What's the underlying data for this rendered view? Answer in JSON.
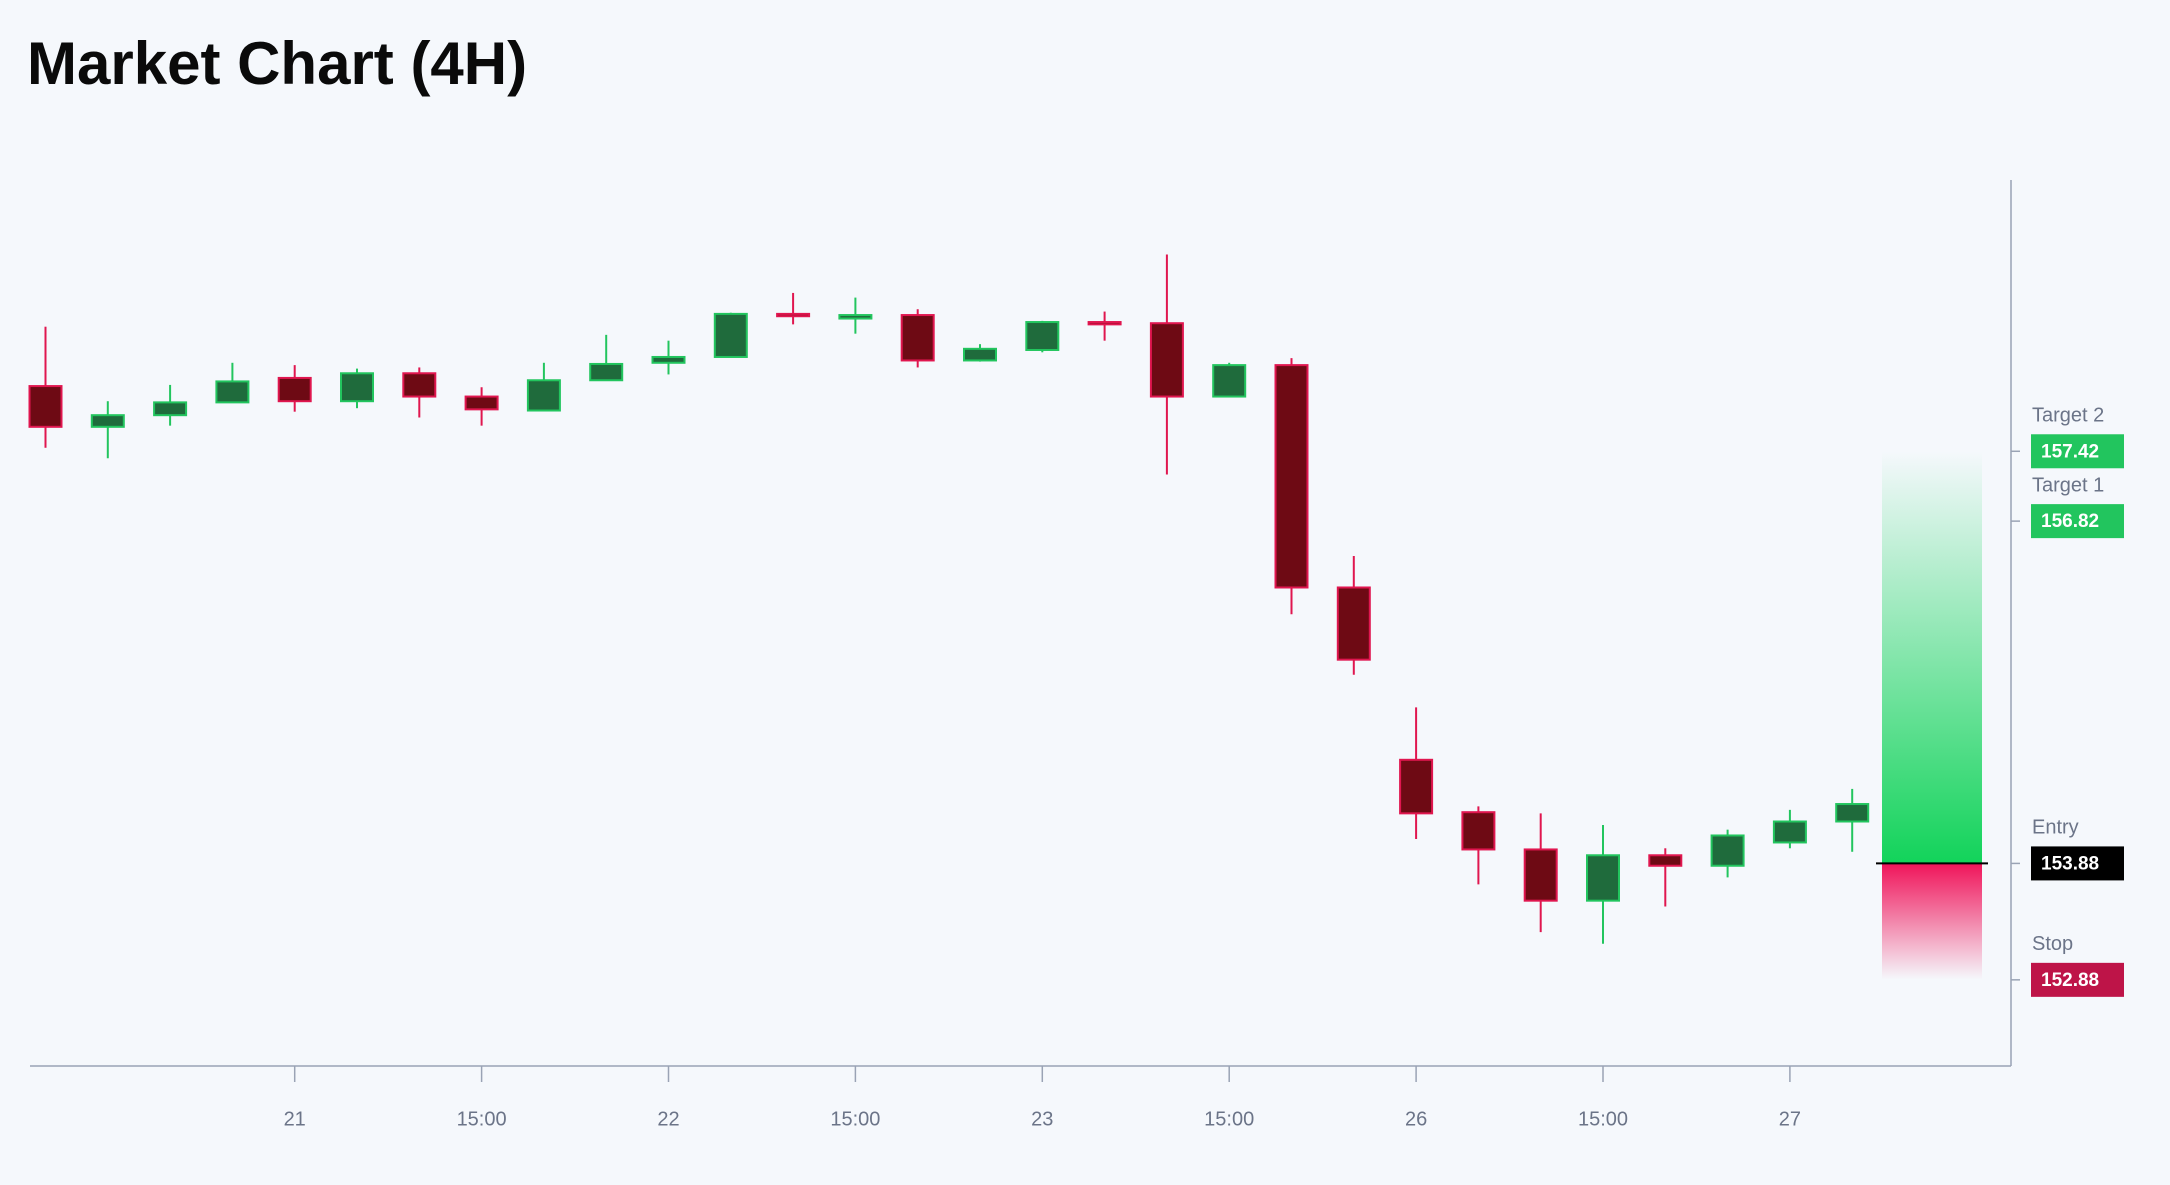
{
  "chart_data": {
    "type": "candlestick",
    "title": "Market Chart (4H)",
    "categories": [
      null,
      null,
      null,
      null,
      "21",
      null,
      null,
      "15:00",
      null,
      null,
      "22",
      null,
      null,
      "15:00",
      null,
      null,
      "23",
      null,
      null,
      "15:00",
      null,
      null,
      "26",
      null,
      null,
      "15:00",
      null,
      null,
      "27",
      null
    ],
    "open": [
      157.98,
      157.63,
      157.73,
      157.84,
      158.05,
      157.85,
      158.09,
      157.89,
      157.77,
      158.03,
      158.18,
      158.23,
      158.6,
      158.56,
      158.59,
      158.2,
      158.29,
      158.53,
      158.52,
      157.89,
      158.16,
      156.25,
      154.77,
      154.32,
      154.0,
      153.56,
      153.95,
      153.86,
      154.06,
      154.24
    ],
    "high": [
      158.49,
      157.85,
      157.99,
      158.18,
      158.16,
      158.13,
      158.14,
      157.97,
      158.18,
      158.42,
      158.37,
      158.61,
      158.78,
      158.74,
      158.64,
      158.34,
      158.54,
      158.62,
      159.11,
      158.18,
      158.22,
      156.52,
      155.22,
      154.37,
      154.31,
      154.21,
      154.01,
      154.17,
      154.34,
      154.52
    ],
    "low": [
      157.45,
      157.36,
      157.64,
      157.84,
      157.76,
      157.79,
      157.71,
      157.64,
      157.77,
      158.03,
      158.08,
      158.23,
      158.51,
      158.43,
      158.14,
      158.19,
      158.27,
      158.37,
      157.22,
      157.89,
      156.02,
      155.5,
      154.09,
      153.7,
      153.29,
      153.19,
      153.51,
      153.76,
      154.01,
      153.98
    ],
    "close": [
      157.63,
      157.73,
      157.84,
      158.02,
      157.85,
      158.09,
      157.89,
      157.78,
      158.03,
      158.17,
      158.23,
      158.6,
      158.58,
      158.59,
      158.2,
      158.3,
      158.53,
      158.51,
      157.89,
      158.16,
      156.25,
      155.63,
      154.31,
      154.0,
      153.56,
      153.95,
      153.86,
      154.12,
      154.24,
      154.39
    ],
    "up_color": "#22c55e",
    "up_fill": "#1f6b3c",
    "down_color": "#e0164f",
    "down_fill": "#6e0a14",
    "ylim": [
      152.14,
      159.75
    ],
    "levels": [
      {
        "name": "Target 2",
        "value": 157.42,
        "color": "#22c55e"
      },
      {
        "name": "Target 1",
        "value": 156.82,
        "color": "#22c55e"
      },
      {
        "name": "Entry",
        "value": 153.88,
        "color": "#000000"
      },
      {
        "name": "Stop",
        "value": 152.88,
        "color": "#be1448"
      }
    ]
  }
}
